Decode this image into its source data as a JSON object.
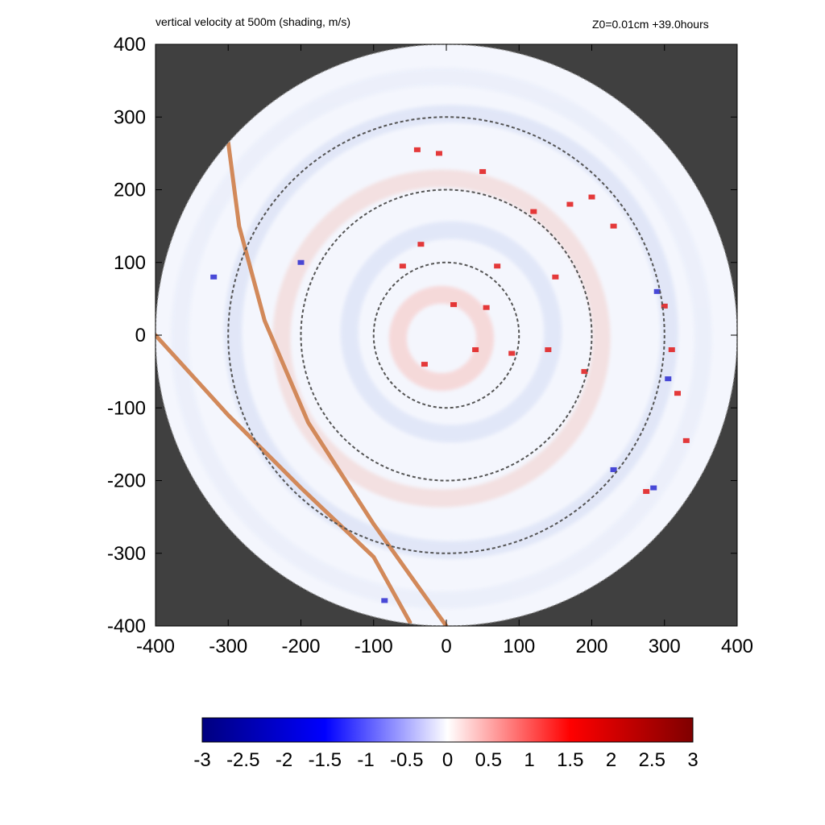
{
  "title_left": "vertical velocity at 500m (shading, m/s)",
  "title_right": "Z0=0.01cm  +39.0hours",
  "chart_data": {
    "type": "heatmap",
    "variable": "vertical velocity at 500m",
    "units": "m/s",
    "case_label": "Z0=0.01cm  +39.0hours",
    "xlim": [
      -400,
      400
    ],
    "ylim": [
      -400,
      400
    ],
    "x_ticks": [
      "-400",
      "-300",
      "-200",
      "-100",
      "0",
      "100",
      "200",
      "300",
      "400"
    ],
    "y_ticks": [
      "400",
      "300",
      "200",
      "100",
      "0",
      "-100",
      "-200",
      "-300",
      "-400"
    ],
    "domain_radius": 400,
    "reference_circle_radii": [
      100,
      200,
      300
    ],
    "colorbar": {
      "min": -3,
      "max": 3,
      "ticks": [
        "-3",
        "-2.5",
        "-2",
        "-1.5",
        "-1",
        "-0.5",
        "0",
        "0.5",
        "1",
        "1.5",
        "2",
        "2.5",
        "3"
      ],
      "colormap": [
        "#00007f",
        "#0000ff",
        "#ffffff",
        "#ff0000",
        "#7f0000"
      ]
    },
    "background_color": "#404040",
    "track_color": "#d2895a",
    "tracks": [
      [
        [
          -400,
          0
        ],
        [
          -300,
          -110
        ],
        [
          -200,
          -210
        ],
        [
          -100,
          -305
        ],
        [
          -50,
          -395
        ]
      ],
      [
        [
          -300,
          265
        ],
        [
          -285,
          150
        ],
        [
          -250,
          20
        ],
        [
          -190,
          -120
        ],
        [
          -100,
          -260
        ],
        [
          0,
          -400
        ]
      ]
    ],
    "features": [
      {
        "kind": "updraft",
        "x": 10,
        "y": 42
      },
      {
        "kind": "updraft",
        "x": 55,
        "y": 38
      },
      {
        "kind": "updraft",
        "x": -60,
        "y": 95
      },
      {
        "kind": "updraft",
        "x": -35,
        "y": 125
      },
      {
        "kind": "updraft",
        "x": 70,
        "y": 95
      },
      {
        "kind": "updraft",
        "x": 150,
        "y": 80
      },
      {
        "kind": "updraft",
        "x": 120,
        "y": 170
      },
      {
        "kind": "updraft",
        "x": 170,
        "y": 180
      },
      {
        "kind": "updraft",
        "x": 200,
        "y": 190
      },
      {
        "kind": "updraft",
        "x": 230,
        "y": 150
      },
      {
        "kind": "updraft",
        "x": -40,
        "y": 255
      },
      {
        "kind": "updraft",
        "x": -10,
        "y": 250
      },
      {
        "kind": "updraft",
        "x": 50,
        "y": 225
      },
      {
        "kind": "updraft",
        "x": 300,
        "y": 40
      },
      {
        "kind": "updraft",
        "x": 310,
        "y": -20
      },
      {
        "kind": "updraft",
        "x": 318,
        "y": -80
      },
      {
        "kind": "updraft",
        "x": 275,
        "y": -215
      },
      {
        "kind": "updraft",
        "x": 90,
        "y": -25
      },
      {
        "kind": "updraft",
        "x": -30,
        "y": -40
      },
      {
        "kind": "updraft",
        "x": 40,
        "y": -20
      },
      {
        "kind": "updraft",
        "x": 140,
        "y": -20
      },
      {
        "kind": "updraft",
        "x": 190,
        "y": -50
      },
      {
        "kind": "updraft",
        "x": 330,
        "y": -145
      },
      {
        "kind": "downdraft",
        "x": 305,
        "y": -60
      },
      {
        "kind": "downdraft",
        "x": 285,
        "y": -210
      },
      {
        "kind": "downdraft",
        "x": 290,
        "y": 60
      },
      {
        "kind": "downdraft",
        "x": -85,
        "y": -365
      },
      {
        "kind": "downdraft",
        "x": 230,
        "y": -185
      },
      {
        "kind": "downdraft",
        "x": -320,
        "y": 80
      },
      {
        "kind": "downdraft",
        "x": -200,
        "y": 100
      }
    ]
  }
}
